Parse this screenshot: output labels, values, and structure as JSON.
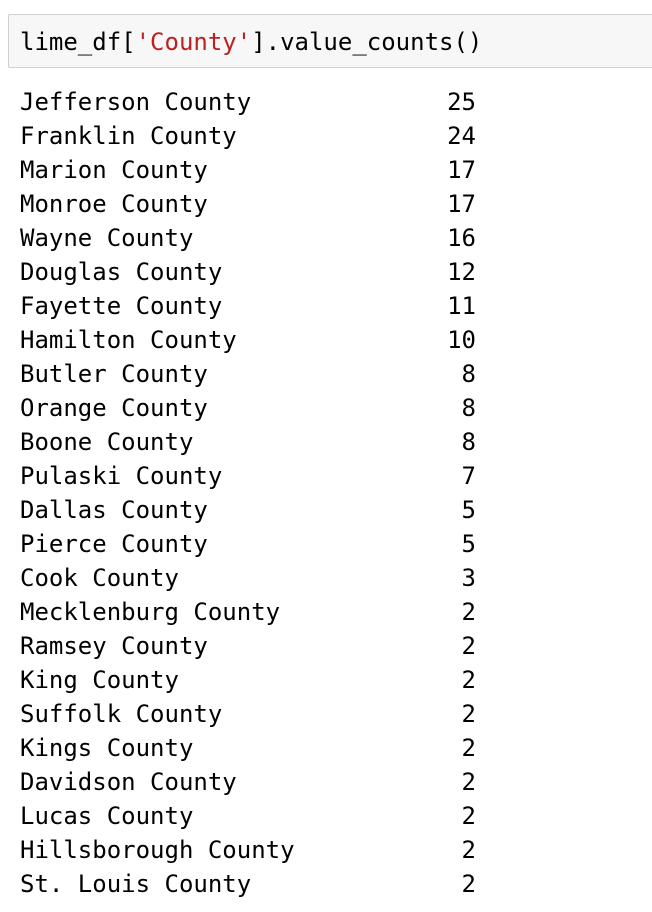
{
  "input_cell": {
    "code_prefix": "lime_df[",
    "code_string": "'County'",
    "code_suffix": "].value_counts()"
  },
  "output": {
    "rows": [
      {
        "name": "Jefferson County",
        "count": "25"
      },
      {
        "name": "Franklin County",
        "count": "24"
      },
      {
        "name": "Marion County",
        "count": "17"
      },
      {
        "name": "Monroe County",
        "count": "17"
      },
      {
        "name": "Wayne County",
        "count": "16"
      },
      {
        "name": "Douglas County",
        "count": "12"
      },
      {
        "name": "Fayette County",
        "count": "11"
      },
      {
        "name": "Hamilton County",
        "count": "10"
      },
      {
        "name": "Butler County",
        "count": "8"
      },
      {
        "name": "Orange County",
        "count": "8"
      },
      {
        "name": "Boone County",
        "count": "8"
      },
      {
        "name": "Pulaski County",
        "count": "7"
      },
      {
        "name": "Dallas County",
        "count": "5"
      },
      {
        "name": "Pierce County",
        "count": "5"
      },
      {
        "name": "Cook County",
        "count": "3"
      },
      {
        "name": "Mecklenburg County",
        "count": "2"
      },
      {
        "name": "Ramsey County",
        "count": "2"
      },
      {
        "name": "King County",
        "count": "2"
      },
      {
        "name": "Suffolk County",
        "count": "2"
      },
      {
        "name": "Kings County",
        "count": "2"
      },
      {
        "name": "Davidson County",
        "count": "2"
      },
      {
        "name": "Lucas County",
        "count": "2"
      },
      {
        "name": "Hillsborough County",
        "count": "2"
      },
      {
        "name": "St. Louis County",
        "count": "2"
      }
    ]
  },
  "colors": {
    "cell_background": "#f7f7f7",
    "cell_border": "#cfcfcf",
    "string_literal": "#ba2121"
  }
}
